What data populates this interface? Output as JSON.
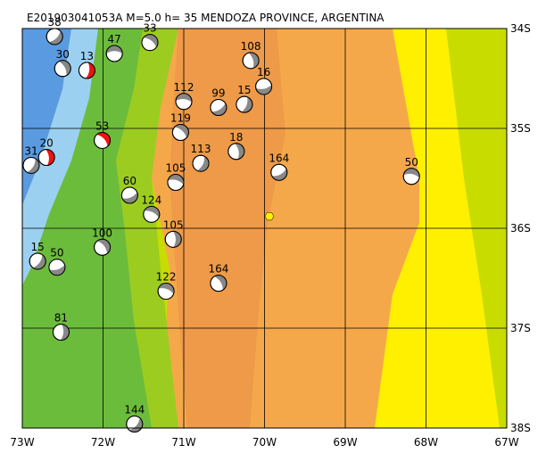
{
  "map": {
    "title": "E201903041053A M=5.0 h= 35 MENDOZA PROVINCE, ARGENTINA",
    "lon_range": [
      -73,
      -67
    ],
    "lat_range": [
      -34,
      -38
    ],
    "lon_ticks": [
      {
        "value": -73,
        "label": "73W"
      },
      {
        "value": -72,
        "label": "72W"
      },
      {
        "value": -71,
        "label": "71W"
      },
      {
        "value": -70,
        "label": "70W"
      },
      {
        "value": -69,
        "label": "69W"
      },
      {
        "value": -68,
        "label": "68W"
      },
      {
        "value": -67,
        "label": "67W"
      }
    ],
    "lat_ticks": [
      {
        "value": -34,
        "label": "34S"
      },
      {
        "value": -35,
        "label": "35S"
      },
      {
        "value": -36,
        "label": "36S"
      },
      {
        "value": -37,
        "label": "37S"
      },
      {
        "value": -38,
        "label": "38S"
      }
    ],
    "events": [
      {
        "depth": 47,
        "lon": -71.86,
        "lat": -34.25,
        "color": "#888888"
      },
      {
        "depth": 33,
        "lon": -71.42,
        "lat": -34.14,
        "color": "#888888"
      },
      {
        "depth": 108,
        "lon": -70.17,
        "lat": -34.32,
        "color": "#888888"
      },
      {
        "depth": 15,
        "lon": -70.25,
        "lat": -34.76,
        "color": "#888888"
      },
      {
        "depth": 99,
        "lon": -70.57,
        "lat": -34.79,
        "color": "#888888"
      },
      {
        "depth": 112,
        "lon": -71.0,
        "lat": -34.73,
        "color": "#888888"
      },
      {
        "depth": 119,
        "lon": -71.04,
        "lat": -35.04,
        "color": "#888888"
      },
      {
        "depth": 18,
        "lon": -70.35,
        "lat": -35.23,
        "color": "#888888"
      },
      {
        "depth": 113,
        "lon": -70.79,
        "lat": -35.35,
        "color": "#888888"
      },
      {
        "depth": 164,
        "lon": -69.82,
        "lat": -35.44,
        "color": "#888888"
      },
      {
        "depth": 50,
        "lon": -68.18,
        "lat": -35.48,
        "color": "#888888"
      },
      {
        "depth": 53,
        "lon": -72.01,
        "lat": -35.12,
        "color": "#ee1111"
      },
      {
        "depth": 20,
        "lon": -72.7,
        "lat": -35.29,
        "color": "#ee1111"
      },
      {
        "depth": 31,
        "lon": -72.89,
        "lat": -35.37,
        "color": "#888888"
      },
      {
        "depth": 60,
        "lon": -71.67,
        "lat": -35.67,
        "color": "#888888"
      },
      {
        "depth": 105,
        "lon": -71.1,
        "lat": -35.54,
        "color": "#888888"
      },
      {
        "depth": 100,
        "lon": -72.01,
        "lat": -36.19,
        "color": "#888888"
      },
      {
        "depth": 105,
        "lon": -71.13,
        "lat": -36.11,
        "color": "#888888"
      },
      {
        "depth": 15,
        "lon": -72.81,
        "lat": -36.33,
        "color": "#888888"
      },
      {
        "depth": 50,
        "lon": -72.57,
        "lat": -36.39,
        "color": "#888888"
      },
      {
        "depth": 122,
        "lon": -71.22,
        "lat": -36.63,
        "color": "#888888"
      },
      {
        "depth": 164,
        "lon": -70.57,
        "lat": -36.55,
        "color": "#888888"
      },
      {
        "depth": 81,
        "lon": -72.52,
        "lat": -37.04,
        "color": "#888888"
      },
      {
        "depth": 144,
        "lon": -71.61,
        "lat": -37.96,
        "color": "#888888"
      },
      {
        "depth": 16,
        "lon": -70.01,
        "lat": -34.58,
        "color": "#888888"
      },
      {
        "depth": 124,
        "lon": -71.4,
        "lat": -35.86,
        "color": "#888888"
      },
      {
        "depth": 30,
        "lon": -72.5,
        "lat": -34.4,
        "color": "#888888"
      },
      {
        "depth": 13,
        "lon": -72.2,
        "lat": -34.42,
        "color": "#ee1111"
      },
      {
        "depth": 38,
        "lon": -72.6,
        "lat": -34.08,
        "color": "#888888"
      }
    ],
    "epicenter": {
      "lon": -69.94,
      "lat": -35.88,
      "color": "#ffee00"
    }
  }
}
